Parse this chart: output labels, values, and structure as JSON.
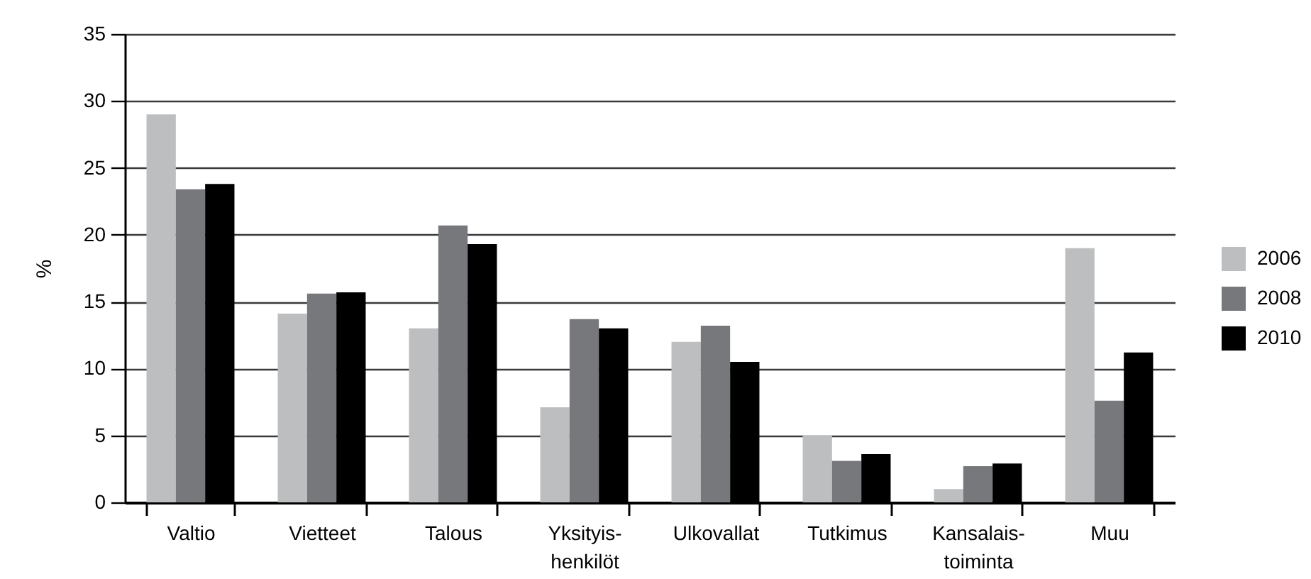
{
  "chart_data": {
    "type": "bar",
    "ylabel": "%",
    "categories": [
      "Valtio",
      "Vietteet",
      "Talous",
      "Yksityis-\nhenkilöt",
      "Ulkovallat",
      "Tutkimus",
      "Kansalais-\ntoiminta",
      "Muu"
    ],
    "series": [
      {
        "name": "2006",
        "color": "#bdbec0",
        "values": [
          29.0,
          14.1,
          13.0,
          7.1,
          12.0,
          5.0,
          1.0,
          19.0
        ]
      },
      {
        "name": "2008",
        "color": "#77787b",
        "values": [
          23.4,
          15.6,
          20.7,
          13.7,
          13.2,
          3.1,
          2.7,
          7.6
        ]
      },
      {
        "name": "2010",
        "color": "#000000",
        "values": [
          23.8,
          15.7,
          19.3,
          13.0,
          10.5,
          3.6,
          2.9,
          11.2
        ]
      }
    ],
    "ylim": [
      0,
      35
    ],
    "yticks": [
      0,
      5,
      10,
      15,
      20,
      25,
      30,
      35
    ],
    "grid": "y",
    "legend": "right"
  }
}
